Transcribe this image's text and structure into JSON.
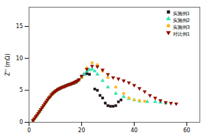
{
  "chart_data": {
    "type": "scatter",
    "ylabel": "Z'' (mΩ)",
    "xlim": [
      0,
      65
    ],
    "ylim": [
      0,
      18
    ],
    "xticks": [
      0,
      20,
      40,
      60
    ],
    "yticks": [
      0,
      5,
      10,
      15
    ],
    "legend": "upper right",
    "series": [
      {
        "name": "实施例1",
        "marker": "square",
        "x": [
          1.5,
          2.0,
          2.5,
          3.0,
          3.5,
          4.0,
          4.5,
          5.0,
          5.5,
          6.0,
          6.5,
          7.0,
          7.5,
          8.0,
          8.5,
          9.0,
          9.5,
          10.0,
          10.5,
          11.0,
          11.5,
          12.0,
          12.5,
          13.0,
          13.5,
          14.0,
          14.5,
          15.0,
          15.5,
          16.0,
          16.5,
          17.0,
          17.5,
          18.0,
          18.5,
          19.0,
          20.0,
          21.0,
          22.0,
          23.0,
          25.0,
          26.0,
          27.0,
          28.0,
          29.0,
          30.0,
          31.0,
          32.0,
          33.0,
          34.0,
          35.0
        ],
        "values": [
          0.3,
          0.55,
          0.85,
          1.1,
          1.4,
          1.7,
          2.0,
          2.3,
          2.6,
          2.9,
          3.2,
          3.5,
          3.8,
          4.0,
          4.3,
          4.5,
          4.7,
          4.85,
          5.0,
          5.15,
          5.25,
          5.35,
          5.45,
          5.55,
          5.6,
          5.7,
          5.8,
          5.88,
          5.95,
          6.0,
          6.05,
          6.1,
          6.2,
          6.3,
          6.5,
          6.6,
          7.2,
          7.5,
          7.6,
          7.5,
          5.2,
          5.0,
          4.2,
          3.8,
          3.0,
          2.6,
          2.5,
          2.5,
          2.6,
          3.2,
          3.5
        ]
      },
      {
        "name": "实施例2",
        "marker": "triangle",
        "x": [
          1.5,
          2.0,
          2.5,
          3.0,
          3.5,
          4.0,
          4.5,
          5.0,
          5.5,
          6.0,
          6.5,
          7.0,
          7.5,
          8.0,
          8.5,
          9.0,
          9.5,
          10.0,
          10.5,
          11.0,
          11.5,
          12.0,
          12.5,
          13.0,
          13.5,
          14.0,
          14.5,
          15.0,
          15.5,
          16.0,
          16.5,
          17.0,
          17.5,
          18.0,
          18.5,
          19.0,
          20.0,
          21.0,
          22.0,
          23.0,
          24.0,
          25.0,
          26.0,
          28.0,
          30.0,
          33.0,
          36.0,
          38.0,
          40.0,
          42.0,
          45.0,
          48.0,
          50.0,
          52.0
        ],
        "values": [
          0.3,
          0.55,
          0.85,
          1.1,
          1.4,
          1.7,
          2.0,
          2.3,
          2.6,
          2.9,
          3.2,
          3.5,
          3.8,
          4.0,
          4.3,
          4.5,
          4.7,
          4.85,
          5.0,
          5.15,
          5.25,
          5.35,
          5.45,
          5.55,
          5.6,
          5.7,
          5.8,
          5.88,
          5.95,
          6.0,
          6.1,
          6.2,
          6.3,
          6.4,
          6.5,
          6.6,
          7.0,
          7.5,
          8.0,
          8.2,
          8.3,
          8.0,
          7.5,
          6.5,
          5.5,
          4.5,
          4.0,
          3.7,
          3.5,
          3.3,
          3.2,
          3.2,
          3.1,
          3.0
        ]
      },
      {
        "name": "实施例3",
        "marker": "circle",
        "x": [
          1.5,
          2.0,
          2.5,
          3.0,
          3.5,
          4.0,
          4.5,
          5.0,
          5.5,
          6.0,
          6.5,
          7.0,
          7.5,
          8.0,
          8.5,
          9.0,
          9.5,
          10.0,
          10.5,
          11.0,
          11.5,
          12.0,
          12.5,
          13.0,
          13.5,
          14.0,
          14.5,
          15.0,
          15.5,
          16.0,
          16.5,
          17.0,
          17.5,
          18.0,
          18.5,
          19.0,
          20.0,
          22.0,
          24.0,
          26.0,
          28.0,
          30.0,
          33.0,
          36.0,
          38.0,
          40.0,
          42.0,
          44.0
        ],
        "values": [
          0.3,
          0.55,
          0.85,
          1.1,
          1.4,
          1.7,
          2.0,
          2.3,
          2.6,
          2.9,
          3.2,
          3.5,
          3.8,
          4.0,
          4.3,
          4.5,
          4.7,
          4.85,
          5.0,
          5.15,
          5.25,
          5.35,
          5.45,
          5.55,
          5.6,
          5.7,
          5.8,
          5.88,
          5.95,
          6.0,
          6.1,
          6.2,
          6.3,
          6.4,
          6.5,
          6.6,
          7.0,
          8.5,
          9.3,
          9.0,
          8.0,
          7.0,
          5.5,
          4.5,
          3.8,
          3.5,
          3.4,
          3.3
        ]
      },
      {
        "name": "对比例1",
        "marker": "triangle-down",
        "x": [
          1.5,
          2.0,
          2.5,
          3.0,
          3.5,
          4.0,
          4.5,
          5.0,
          5.5,
          6.0,
          6.5,
          7.0,
          7.5,
          8.0,
          8.5,
          9.0,
          9.5,
          10.0,
          10.5,
          11.0,
          11.5,
          12.0,
          12.5,
          13.0,
          13.5,
          14.0,
          14.5,
          15.0,
          15.5,
          16.0,
          16.5,
          17.0,
          17.5,
          18.0,
          18.5,
          19.0,
          20.0,
          22.0,
          24.0,
          26.0,
          28.0,
          30.0,
          32.0,
          34.0,
          36.0,
          38.0,
          40.0,
          42.0,
          44.0,
          46.0,
          48.0,
          50.0,
          52.0,
          54.0,
          56.0
        ],
        "values": [
          0.3,
          0.55,
          0.85,
          1.1,
          1.4,
          1.7,
          2.0,
          2.3,
          2.6,
          2.9,
          3.2,
          3.5,
          3.8,
          4.0,
          4.3,
          4.5,
          4.7,
          4.85,
          5.0,
          5.15,
          5.25,
          5.35,
          5.45,
          5.55,
          5.6,
          5.7,
          5.8,
          5.88,
          5.95,
          6.0,
          6.1,
          6.2,
          6.3,
          6.4,
          6.5,
          6.7,
          7.2,
          8.3,
          8.8,
          8.7,
          8.2,
          7.5,
          7.0,
          6.8,
          6.5,
          6.2,
          5.8,
          5.3,
          4.8,
          4.2,
          3.8,
          3.4,
          3.1,
          3.0,
          2.9
        ]
      }
    ]
  }
}
